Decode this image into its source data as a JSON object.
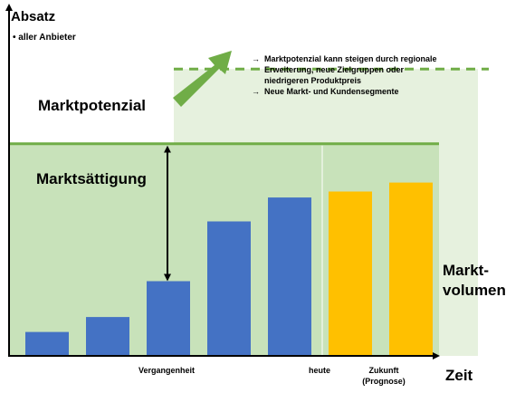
{
  "chart_data": {
    "type": "bar",
    "y_axis_title": "Absatz",
    "y_axis_subtitle": "• aller Anbieter",
    "x_axis_title": "Zeit",
    "values": [
      8,
      13,
      25,
      45,
      53,
      55,
      58
    ],
    "bar_kinds": [
      "past",
      "past",
      "past",
      "past",
      "past",
      "forecast",
      "forecast"
    ],
    "ylim": [
      0,
      100
    ],
    "market_potential_level": 71,
    "raised_potential_level": 96,
    "x_labels": {
      "past": "Vergangenheit",
      "today": "heute",
      "future_line1": "Zukunft",
      "future_line2": "(Prognose)"
    },
    "annotations": {
      "market_potential": "Marktpotenzial",
      "market_saturation": "Marktsättigung",
      "market_volume_line1": "Markt-",
      "market_volume_line2": "volumen",
      "potential_notes": [
        "Marktpotenzial kann steigen durch regionale",
        "Erweiterung, neue Zielgruppen oder",
        "niedrigeren Produktpreis",
        "Neue Markt- und Kundensegmente"
      ]
    },
    "colors": {
      "past_bar": "#4472C4",
      "forecast_bar": "#FFC000",
      "potential_area": "#C8E2BA",
      "raised_area": "#E6F1DE",
      "potential_line": "#70AD47",
      "axis": "#000000"
    }
  }
}
